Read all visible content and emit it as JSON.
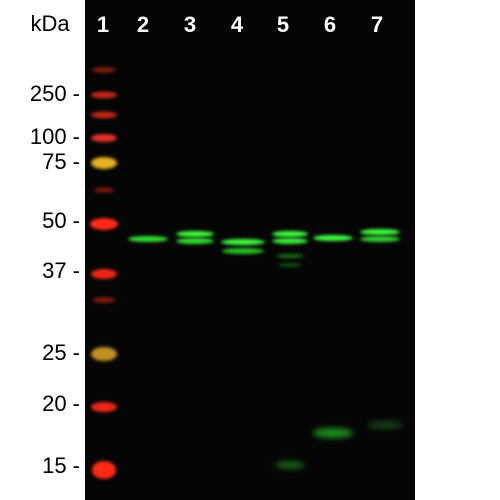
{
  "header": {
    "unit": "kDa",
    "lanes": [
      "1",
      "2",
      "3",
      "4",
      "5",
      "6",
      "7"
    ]
  },
  "markers": [
    "250 -",
    "100 -",
    "75 -",
    "50 -",
    "37 -",
    "25 -",
    "20 -",
    "15 -"
  ]
}
